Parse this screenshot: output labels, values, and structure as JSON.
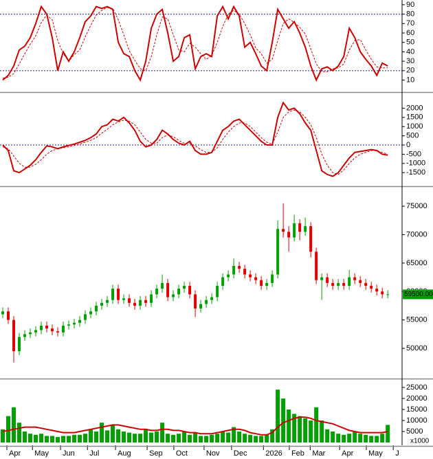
{
  "chart_data": [
    {
      "type": "line",
      "ylim": [
        -2,
        95
      ],
      "yticks": [
        10,
        20,
        30,
        40,
        50,
        60,
        70,
        80,
        90
      ],
      "hlines": [
        20,
        80
      ],
      "series": [
        {
          "color": "#cc0000",
          "dash": false,
          "values": [
            10,
            15,
            25,
            42,
            46,
            55,
            70,
            88,
            80,
            55,
            20,
            40,
            30,
            40,
            55,
            72,
            78,
            88,
            86,
            88,
            85,
            50,
            38,
            35,
            20,
            10,
            30,
            65,
            80,
            85,
            60,
            30,
            35,
            55,
            58,
            22,
            35,
            38,
            35,
            78,
            88,
            75,
            88,
            78,
            45,
            50,
            38,
            25,
            20,
            50,
            85,
            75,
            65,
            72,
            60,
            45,
            25,
            10,
            22,
            24,
            20,
            25,
            35,
            65,
            55,
            40,
            32,
            25,
            15,
            28,
            25
          ]
        },
        {
          "color": "#cc0000",
          "dash": true,
          "values": [
            12,
            13,
            17,
            27,
            38,
            48,
            57,
            71,
            79,
            74,
            52,
            38,
            30,
            37,
            42,
            56,
            68,
            79,
            84,
            87,
            86,
            74,
            58,
            41,
            31,
            22,
            20,
            35,
            58,
            77,
            75,
            58,
            42,
            40,
            49,
            45,
            38,
            32,
            36,
            50,
            67,
            80,
            84,
            80,
            70,
            58,
            44,
            38,
            28,
            32,
            52,
            70,
            75,
            71,
            66,
            59,
            43,
            27,
            19,
            19,
            22,
            23,
            27,
            42,
            52,
            53,
            42,
            32,
            24,
            23,
            23
          ]
        }
      ]
    },
    {
      "type": "line",
      "ylim": [
        -2200,
        2800
      ],
      "yticks": [
        -1500,
        -1000,
        -500,
        0,
        500,
        1000,
        1500,
        2000
      ],
      "hlines": [
        0
      ],
      "series": [
        {
          "color": "#cc0000",
          "dash": false,
          "values": [
            0,
            -300,
            -1400,
            -1500,
            -1300,
            -1100,
            -800,
            -400,
            -50,
            -100,
            -200,
            -100,
            -20,
            50,
            150,
            250,
            400,
            600,
            1000,
            1100,
            1400,
            1300,
            1500,
            1200,
            800,
            200,
            -100,
            0,
            300,
            800,
            600,
            300,
            100,
            0,
            200,
            -300,
            -500,
            -500,
            -400,
            200,
            800,
            1000,
            1300,
            1400,
            1100,
            800,
            500,
            200,
            0,
            0,
            1500,
            2300,
            1900,
            2000,
            1700,
            1200,
            800,
            -300,
            -1400,
            -1600,
            -1700,
            -1500,
            -1100,
            -700,
            -400,
            -350,
            -300,
            -250,
            -300,
            -500,
            -550
          ]
        },
        {
          "color": "#cc0000",
          "dash": true,
          "values": [
            -100,
            -200,
            -600,
            -1000,
            -1200,
            -1200,
            -1050,
            -800,
            -500,
            -300,
            -200,
            -150,
            -100,
            -30,
            50,
            150,
            250,
            400,
            650,
            850,
            1100,
            1250,
            1350,
            1300,
            1100,
            700,
            300,
            100,
            100,
            400,
            550,
            450,
            250,
            100,
            100,
            -50,
            -250,
            -400,
            -400,
            -150,
            300,
            700,
            1000,
            1200,
            1200,
            1000,
            700,
            400,
            150,
            50,
            700,
            1500,
            1800,
            1900,
            1800,
            1500,
            1100,
            400,
            -500,
            -1100,
            -1500,
            -1600,
            -1350,
            -1000,
            -700,
            -500,
            -400,
            -300,
            -300,
            -400,
            -500
          ]
        }
      ]
    },
    {
      "type": "candlestick",
      "ylim": [
        44800,
        78400
      ],
      "yticks": [
        50000,
        55000,
        60000,
        65000,
        70000,
        75000
      ],
      "up_color": "#00a000",
      "down_color": "#e00000",
      "last_price": {
        "value": 59500,
        "label": "59500.00"
      },
      "open": [
        56000,
        56500,
        55000,
        49500,
        52000,
        52500,
        52800,
        53200,
        54000,
        53500,
        53000,
        52800,
        54000,
        54200,
        54500,
        55000,
        56000,
        56500,
        57500,
        58000,
        58500,
        60500,
        58500,
        58800,
        58000,
        57500,
        58500,
        58000,
        59500,
        60500,
        61500,
        59000,
        59500,
        60500,
        61000,
        59500,
        57000,
        57800,
        58500,
        59000,
        61000,
        62500,
        63000,
        64500,
        64000,
        63000,
        62500,
        62000,
        61000,
        61500,
        63000,
        71000,
        70500,
        69500,
        72000,
        70500,
        71500,
        67000,
        62000,
        62500,
        61500,
        61000,
        61500,
        61000,
        62500,
        62000,
        61500,
        61000,
        60500,
        60000,
        59500
      ],
      "high": [
        57200,
        57200,
        55700,
        52700,
        53200,
        53500,
        53900,
        54700,
        54700,
        54200,
        53700,
        54700,
        54900,
        55200,
        55700,
        56700,
        57200,
        58200,
        58700,
        59200,
        61200,
        61200,
        59500,
        59500,
        58700,
        59200,
        59200,
        60200,
        61200,
        63000,
        62200,
        60200,
        61200,
        61700,
        61700,
        60200,
        58500,
        59200,
        59700,
        61700,
        63200,
        63700,
        65800,
        65200,
        64700,
        63700,
        63200,
        62700,
        62200,
        63700,
        72500,
        75500,
        71500,
        73500,
        72700,
        73000,
        72200,
        67700,
        63200,
        63200,
        62200,
        62200,
        62200,
        63800,
        63200,
        62700,
        62200,
        61700,
        61200,
        60700,
        60200
      ],
      "low": [
        55300,
        54300,
        47500,
        48800,
        51300,
        51800,
        52100,
        52500,
        52800,
        52300,
        52100,
        52100,
        53300,
        53500,
        53800,
        54300,
        55300,
        55800,
        56800,
        57300,
        57800,
        57800,
        57800,
        57300,
        56800,
        56800,
        57300,
        57300,
        58800,
        59800,
        58300,
        58300,
        58800,
        59800,
        58800,
        55500,
        56300,
        57100,
        57800,
        58300,
        60300,
        61800,
        62300,
        63300,
        62300,
        61800,
        61300,
        60300,
        60300,
        60800,
        62300,
        69500,
        67000,
        68800,
        69000,
        69800,
        66000,
        61300,
        58500,
        60800,
        60300,
        60300,
        60300,
        60300,
        61300,
        60800,
        60300,
        59800,
        59300,
        58800,
        58800
      ],
      "close": [
        56500,
        55000,
        49500,
        52000,
        52500,
        52800,
        53200,
        54000,
        53500,
        53000,
        52800,
        54000,
        54200,
        54500,
        55000,
        56000,
        56500,
        57500,
        58000,
        58500,
        60500,
        58500,
        58800,
        58000,
        57500,
        58500,
        58000,
        59500,
        60500,
        61500,
        59000,
        59500,
        60500,
        61000,
        59500,
        57000,
        57800,
        58500,
        59000,
        61000,
        62500,
        63000,
        64500,
        64000,
        63000,
        62500,
        62000,
        61000,
        61500,
        63000,
        71000,
        70500,
        69500,
        72000,
        70500,
        71500,
        67000,
        62000,
        62500,
        61500,
        61000,
        61500,
        61000,
        62500,
        62000,
        61500,
        61000,
        60500,
        60000,
        59500,
        59500
      ]
    },
    {
      "type": "bar",
      "ylim": [
        -1250,
        28400
      ],
      "yticks": [
        5000,
        10000,
        15000,
        20000,
        25000
      ],
      "unit_label": "x1000",
      "xlim": [
        -0.5,
        72.6
      ],
      "xticks": [
        {
          "value": 0.75,
          "label": "Apr"
        },
        {
          "value": 5.4,
          "label": "May"
        },
        {
          "value": 10.5,
          "label": "Jun"
        },
        {
          "value": 15.4,
          "label": "Jul"
        },
        {
          "value": 20.5,
          "label": "Aug"
        },
        {
          "value": 26.25,
          "label": "Sep"
        },
        {
          "value": 31.1,
          "label": "Oct"
        },
        {
          "value": 36.6,
          "label": "Nov"
        },
        {
          "value": 41.6,
          "label": "Dec"
        },
        {
          "value": 47.4,
          "label": "2026"
        },
        {
          "value": 52.1,
          "label": "Feb"
        },
        {
          "value": 55.9,
          "label": "Mar"
        },
        {
          "value": 61.25,
          "label": "Apr"
        },
        {
          "value": 66.1,
          "label": "May"
        },
        {
          "value": 71,
          "label": "J"
        }
      ],
      "color": "#00a000",
      "values": [
        6000,
        12000,
        16000,
        9000,
        5000,
        4000,
        3500,
        4000,
        3000,
        3000,
        2500,
        3000,
        3000,
        3500,
        3500,
        4000,
        6000,
        5000,
        9000,
        5500,
        8000,
        6000,
        5000,
        4500,
        4000,
        4000,
        6000,
        4500,
        5000,
        9000,
        4000,
        3500,
        4000,
        5000,
        3500,
        4500,
        3000,
        3000,
        3500,
        4000,
        5000,
        4500,
        7000,
        5000,
        4000,
        3500,
        3000,
        3000,
        3500,
        6000,
        24000,
        20000,
        15000,
        13000,
        12000,
        11000,
        10000,
        16000,
        10000,
        6000,
        5000,
        4000,
        3500,
        4000,
        5000,
        4000,
        3500,
        3000,
        3000,
        4000,
        8000
      ],
      "series": [
        {
          "color": "#cc0000",
          "dash": false,
          "values": [
            5000,
            5500,
            6000,
            6500,
            7000,
            7000,
            7000,
            6500,
            6000,
            5500,
            5000,
            4500,
            4500,
            4500,
            5000,
            5500,
            6000,
            6500,
            7000,
            7500,
            8000,
            8000,
            7500,
            7000,
            6500,
            6000,
            6000,
            5500,
            5500,
            6000,
            6000,
            5500,
            5500,
            5000,
            4500,
            4500,
            4000,
            4000,
            4000,
            4500,
            5000,
            5500,
            6000,
            6000,
            5500,
            4500,
            4000,
            3500,
            3500,
            4500,
            7000,
            9000,
            10000,
            11000,
            11500,
            11500,
            11000,
            10000,
            9500,
            9000,
            8500,
            7500,
            6500,
            5500,
            5000,
            4500,
            4500,
            4500,
            4500,
            4500,
            5000
          ]
        }
      ]
    }
  ]
}
